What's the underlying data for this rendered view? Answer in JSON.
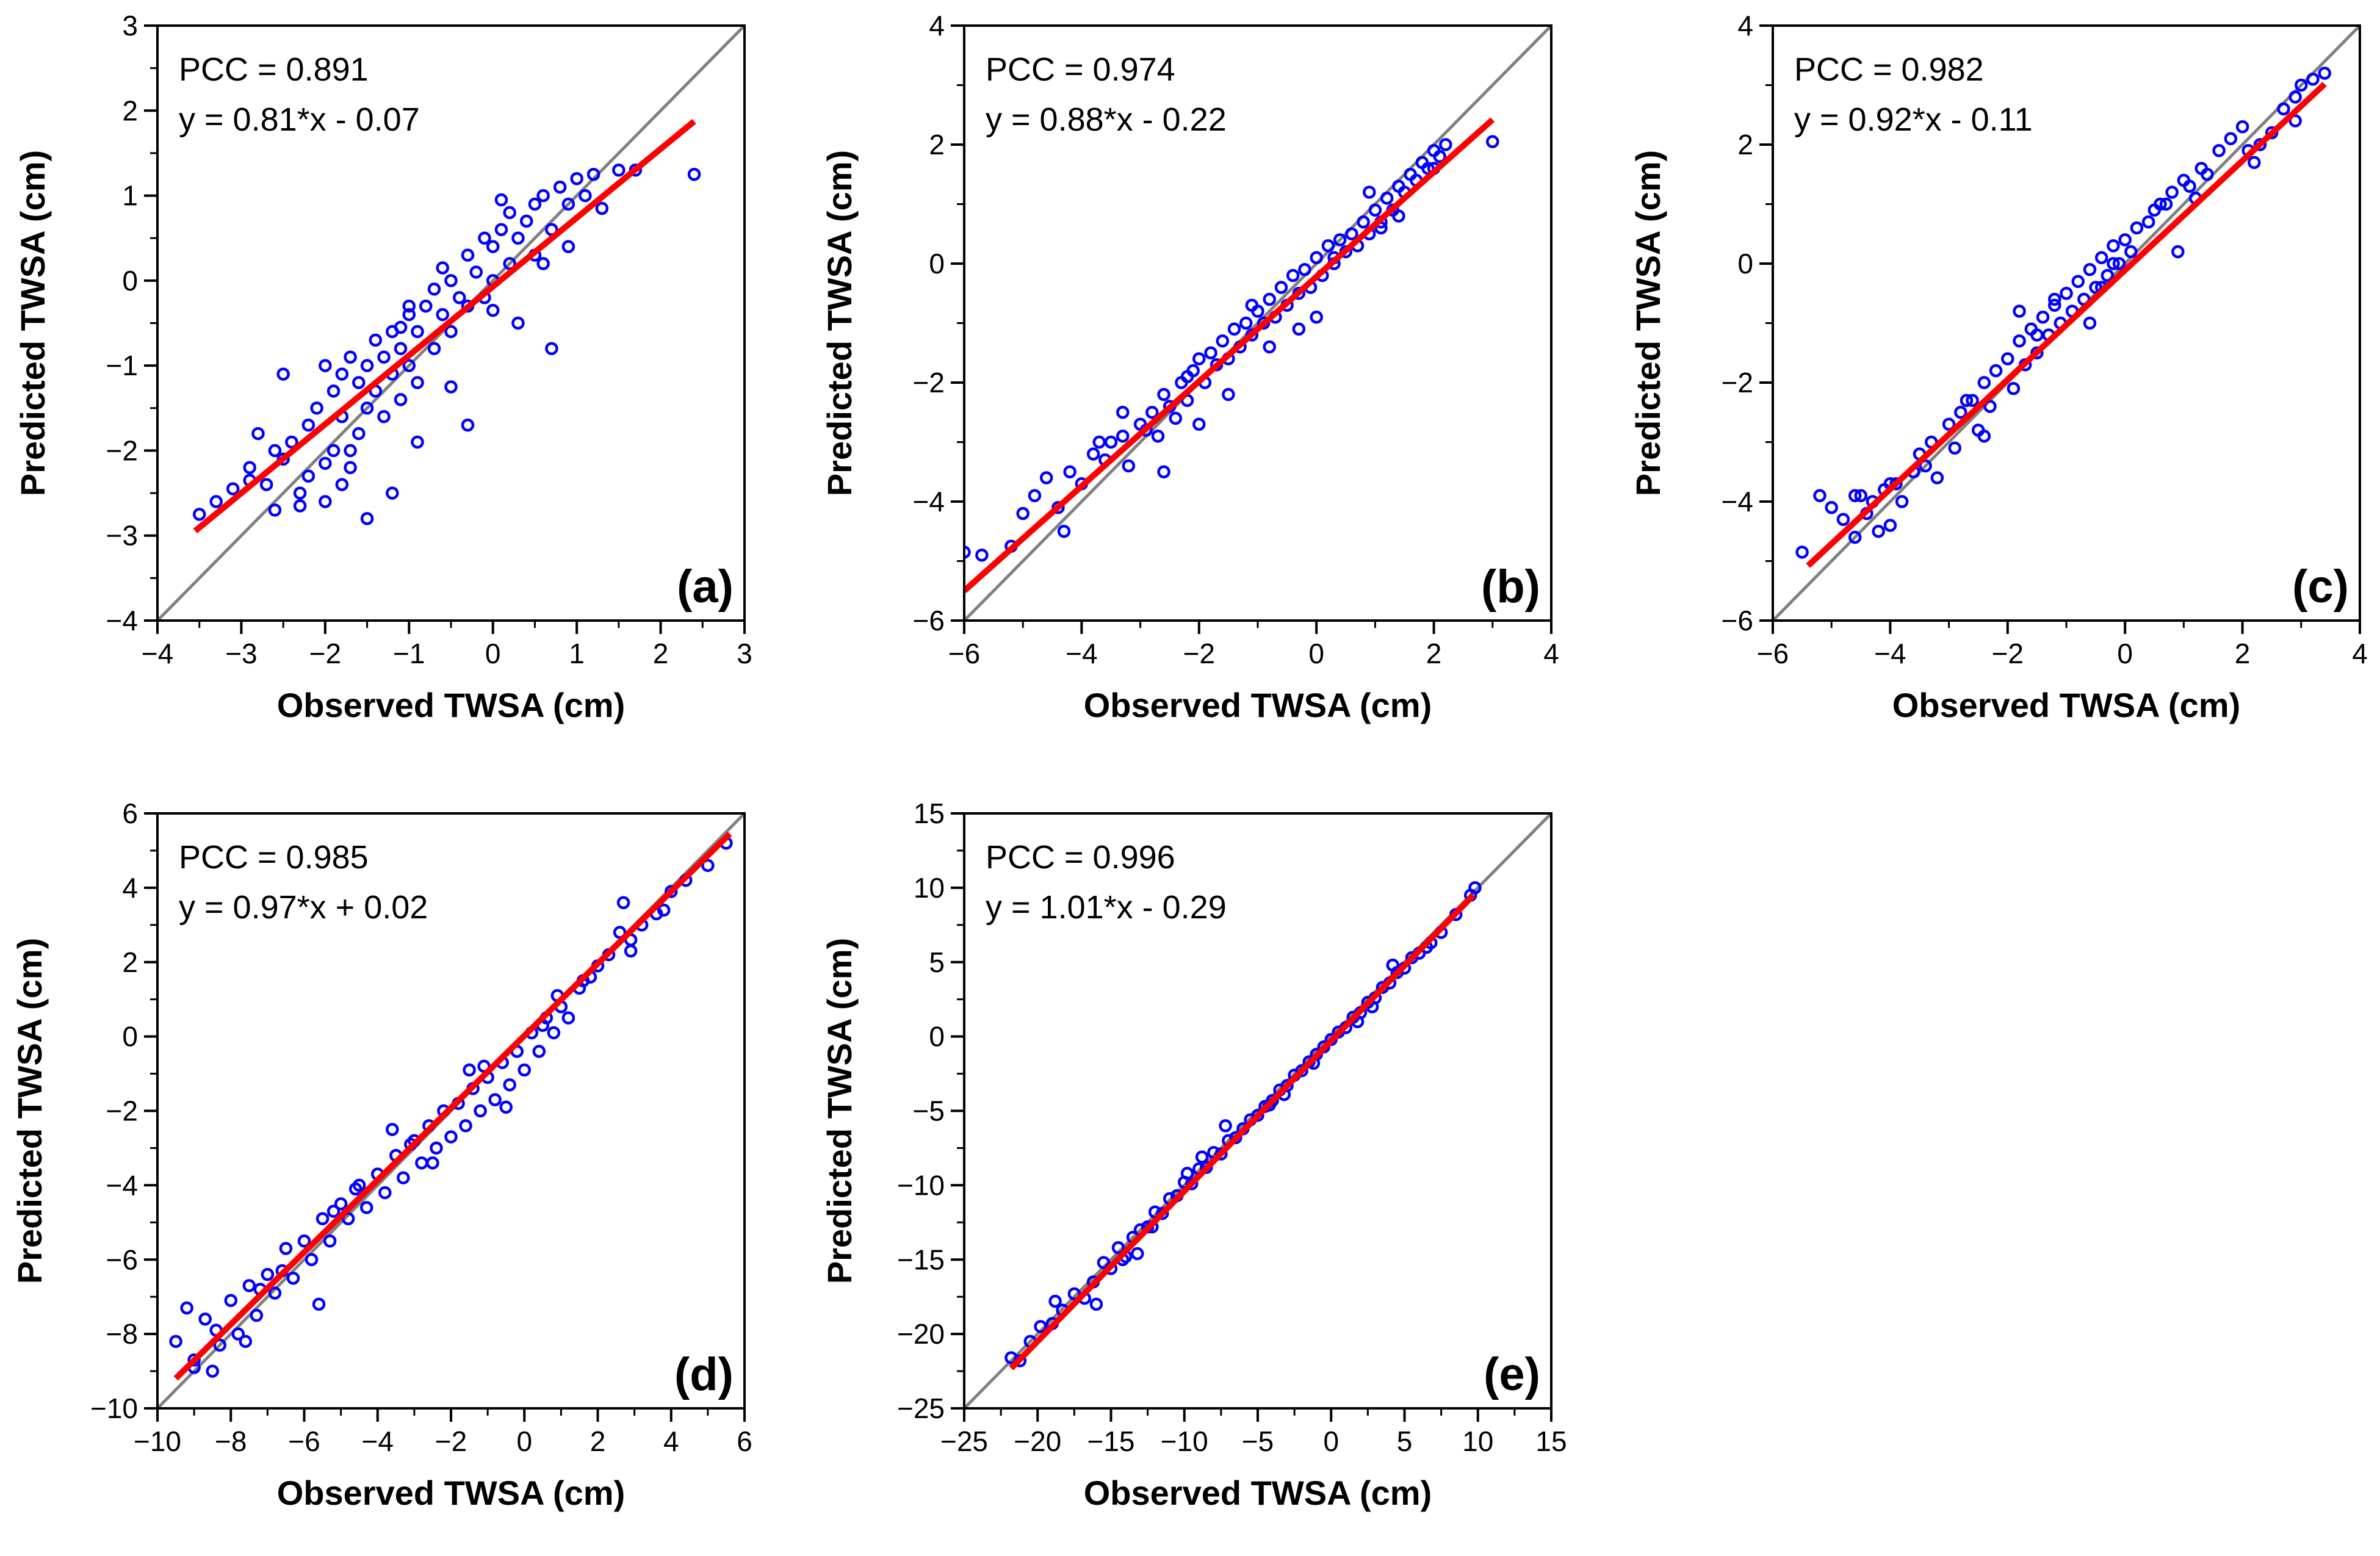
{
  "chart_data": [
    {
      "type": "scatter",
      "panel_label": "(a)",
      "xlabel": "Observed TWSA (cm)",
      "ylabel": "Predicted TWSA (cm)",
      "xlim": [
        -4,
        3
      ],
      "ylim": [
        -4,
        3
      ],
      "xticks": [
        -4,
        -3,
        -2,
        -1,
        0,
        1,
        2,
        3
      ],
      "yticks": [
        -4,
        -3,
        -2,
        -1,
        0,
        1,
        2,
        3
      ],
      "pcc_text": "PCC = 0.891",
      "fit_text": "y = 0.81*x - 0.07",
      "fit": {
        "slope": 0.81,
        "intercept": -0.07,
        "x_range": [
          -3.55,
          2.4
        ]
      },
      "reference_line": "1:1",
      "colors": {
        "points": "#0000ff",
        "fit": "#ff0000",
        "reference": "#808080"
      },
      "x": [
        -3.5,
        -3.3,
        -3.1,
        -2.9,
        -2.8,
        -2.7,
        -2.6,
        -2.5,
        -2.4,
        -2.3,
        -2.2,
        -2.2,
        -2.1,
        -2.0,
        -2.0,
        -1.9,
        -1.9,
        -1.8,
        -1.8,
        -1.7,
        -1.7,
        -1.6,
        -1.6,
        -1.5,
        -1.5,
        -1.4,
        -1.4,
        -1.3,
        -1.3,
        -1.2,
        -1.2,
        -1.1,
        -1.1,
        -1.0,
        -1.0,
        -0.9,
        -0.9,
        -0.8,
        -0.7,
        -0.7,
        -0.6,
        -0.5,
        -0.5,
        -0.4,
        -0.3,
        -0.3,
        -0.2,
        -0.1,
        -0.1,
        0.0,
        0.0,
        0.1,
        0.2,
        0.2,
        0.3,
        0.4,
        0.5,
        0.5,
        0.6,
        0.7,
        0.8,
        0.9,
        1.0,
        1.1,
        1.2,
        1.3,
        1.5,
        1.7,
        2.4,
        -2.5,
        -1.5,
        -1.0,
        -0.3,
        0.1,
        0.7,
        -2.6,
        -2.0,
        -1.8,
        -1.2,
        -0.9,
        -0.5,
        0.3,
        0.9,
        -2.9,
        -2.3,
        -1.7,
        -1.1,
        -0.6,
        0.0,
        0.6
      ],
      "y": [
        -2.75,
        -2.6,
        -2.45,
        -2.2,
        -1.8,
        -2.4,
        -2.0,
        -2.1,
        -1.9,
        -2.5,
        -1.7,
        -2.3,
        -1.5,
        -1.0,
        -2.6,
        -1.3,
        -2.0,
        -1.1,
        -1.6,
        -0.9,
        -2.2,
        -1.2,
        -1.8,
        -1.0,
        -1.5,
        -0.7,
        -1.3,
        -0.9,
        -1.6,
        -0.6,
        -1.1,
        -0.8,
        -1.4,
        -0.4,
        -1.0,
        -0.6,
        -1.2,
        -0.3,
        -0.1,
        -0.8,
        -0.4,
        0.0,
        -0.6,
        -0.2,
        0.3,
        -0.3,
        0.1,
        0.5,
        -0.2,
        0.4,
        0.0,
        0.6,
        0.2,
        0.8,
        0.5,
        0.7,
        0.9,
        0.3,
        1.0,
        0.6,
        1.1,
        0.9,
        1.2,
        1.0,
        1.25,
        0.85,
        1.3,
        1.3,
        1.25,
        -1.1,
        -2.8,
        -0.3,
        -1.7,
        0.95,
        -0.8,
        -2.7,
        -2.15,
        -2.4,
        -2.5,
        -1.9,
        -1.25,
        -0.5,
        0.4,
        -2.35,
        -2.65,
        -2.0,
        -0.55,
        0.15,
        -0.35,
        0.2
      ]
    },
    {
      "type": "scatter",
      "panel_label": "(b)",
      "xlabel": "Observed TWSA (cm)",
      "ylabel": "Predicted TWSA (cm)",
      "xlim": [
        -6,
        4
      ],
      "ylim": [
        -6,
        4
      ],
      "xticks": [
        -6,
        -4,
        -2,
        0,
        2,
        4
      ],
      "yticks": [
        -6,
        -4,
        -2,
        0,
        2,
        4
      ],
      "pcc_text": "PCC = 0.974",
      "fit_text": "y = 0.88*x - 0.22",
      "fit": {
        "slope": 0.88,
        "intercept": -0.22,
        "x_range": [
          -6.0,
          3.0
        ]
      },
      "reference_line": "1:1",
      "colors": {
        "points": "#0000ff",
        "fit": "#ff0000",
        "reference": "#808080"
      },
      "x": [
        -6.0,
        -5.7,
        -5.2,
        -5.0,
        -4.8,
        -4.6,
        -4.4,
        -4.2,
        -4.0,
        -3.8,
        -3.6,
        -3.5,
        -3.3,
        -3.2,
        -3.0,
        -2.9,
        -2.8,
        -2.7,
        -2.6,
        -2.5,
        -2.4,
        -2.3,
        -2.2,
        -2.1,
        -2.0,
        -1.9,
        -1.8,
        -1.7,
        -1.6,
        -1.5,
        -1.4,
        -1.3,
        -1.2,
        -1.1,
        -1.0,
        -0.9,
        -0.8,
        -0.7,
        -0.6,
        -0.5,
        -0.4,
        -0.3,
        -0.2,
        -0.1,
        0.0,
        0.1,
        0.2,
        0.3,
        0.4,
        0.5,
        0.6,
        0.7,
        0.8,
        0.9,
        1.0,
        1.1,
        1.2,
        1.3,
        1.4,
        1.5,
        1.6,
        1.7,
        1.8,
        1.9,
        2.0,
        2.1,
        2.2,
        3.0,
        -4.3,
        -3.7,
        -2.6,
        -2.0,
        -1.5,
        -0.8,
        -0.3,
        0.3,
        0.9,
        1.4,
        2.0,
        -3.3,
        -2.2,
        -1.1,
        0.0,
        1.1
      ],
      "y": [
        -4.85,
        -4.9,
        -4.75,
        -4.2,
        -3.9,
        -3.6,
        -4.1,
        -3.5,
        -3.7,
        -3.2,
        -3.3,
        -3.0,
        -2.9,
        -3.4,
        -2.7,
        -2.8,
        -2.5,
        -2.9,
        -2.2,
        -2.4,
        -2.6,
        -2.0,
        -2.3,
        -1.8,
        -1.6,
        -2.0,
        -1.5,
        -1.7,
        -1.3,
        -1.6,
        -1.1,
        -1.4,
        -1.0,
        -1.2,
        -0.8,
        -1.0,
        -0.6,
        -0.9,
        -0.4,
        -0.7,
        -0.2,
        -0.5,
        -0.1,
        -0.4,
        0.1,
        -0.2,
        0.3,
        0.0,
        0.4,
        0.2,
        0.5,
        0.3,
        0.7,
        0.5,
        0.9,
        0.7,
        1.1,
        0.9,
        1.3,
        1.2,
        1.5,
        1.4,
        1.7,
        1.6,
        1.9,
        1.8,
        2.0,
        2.05,
        -4.5,
        -3.0,
        -3.5,
        -2.7,
        -2.2,
        -1.4,
        -1.1,
        0.1,
        1.2,
        0.8,
        1.6,
        -2.5,
        -1.9,
        -0.7,
        -0.9,
        0.6
      ]
    },
    {
      "type": "scatter",
      "panel_label": "(c)",
      "xlabel": "Observed TWSA (cm)",
      "ylabel": "Predicted TWSA (cm)",
      "xlim": [
        -6,
        4
      ],
      "ylim": [
        -6,
        4
      ],
      "xticks": [
        -6,
        -4,
        -2,
        0,
        2,
        4
      ],
      "yticks": [
        -6,
        -4,
        -2,
        0,
        2,
        4
      ],
      "pcc_text": "PCC = 0.982",
      "fit_text": "y = 0.92*x - 0.11",
      "fit": {
        "slope": 0.92,
        "intercept": -0.11,
        "x_range": [
          -5.4,
          3.4
        ]
      },
      "reference_line": "1:1",
      "colors": {
        "points": "#0000ff",
        "fit": "#ff0000",
        "reference": "#808080"
      },
      "x": [
        -5.5,
        -5.2,
        -5.0,
        -4.8,
        -4.6,
        -4.5,
        -4.4,
        -4.3,
        -4.2,
        -4.1,
        -4.0,
        -3.9,
        -3.8,
        -3.6,
        -3.5,
        -3.3,
        -3.2,
        -3.0,
        -2.9,
        -2.8,
        -2.6,
        -2.5,
        -2.4,
        -2.3,
        -2.2,
        -2.0,
        -1.9,
        -1.8,
        -1.7,
        -1.6,
        -1.5,
        -1.4,
        -1.3,
        -1.2,
        -1.1,
        -1.0,
        -0.9,
        -0.8,
        -0.7,
        -0.6,
        -0.5,
        -0.4,
        -0.3,
        -0.2,
        -0.1,
        0.0,
        0.1,
        0.2,
        0.4,
        0.5,
        0.7,
        0.8,
        1.0,
        1.1,
        1.3,
        1.4,
        1.6,
        1.8,
        2.0,
        2.1,
        2.3,
        2.5,
        2.7,
        2.9,
        3.0,
        3.2,
        3.4,
        -4.6,
        -3.4,
        -2.7,
        -1.8,
        -1.2,
        -0.6,
        -0.2,
        0.6,
        1.2,
        2.2,
        2.9,
        -4.0,
        -2.4,
        -1.5,
        -0.4,
        0.9
      ],
      "y": [
        -4.85,
        -3.9,
        -4.1,
        -4.3,
        -4.6,
        -3.9,
        -4.2,
        -4.0,
        -4.5,
        -3.8,
        -4.4,
        -3.7,
        -4.0,
        -3.5,
        -3.2,
        -3.0,
        -3.6,
        -2.7,
        -3.1,
        -2.5,
        -2.3,
        -2.8,
        -2.0,
        -2.4,
        -1.8,
        -1.6,
        -2.1,
        -1.3,
        -1.7,
        -1.1,
        -1.5,
        -0.9,
        -1.2,
        -0.7,
        -1.0,
        -0.5,
        -0.8,
        -0.3,
        -0.6,
        -0.1,
        -0.4,
        0.1,
        -0.2,
        0.3,
        0.0,
        0.4,
        0.2,
        0.6,
        0.7,
        0.9,
        1.0,
        1.2,
        1.4,
        1.3,
        1.6,
        1.5,
        1.9,
        2.1,
        2.3,
        1.9,
        2.0,
        2.2,
        2.6,
        2.8,
        3.0,
        3.1,
        3.2,
        -3.9,
        -3.4,
        -2.3,
        -0.8,
        -0.6,
        -1.0,
        0.0,
        1.0,
        1.1,
        1.7,
        2.4,
        -3.7,
        -2.9,
        -1.2,
        -0.4,
        0.2
      ]
    },
    {
      "type": "scatter",
      "panel_label": "(d)",
      "xlabel": "Observed TWSA (cm)",
      "ylabel": "Predicted TWSA (cm)",
      "xlim": [
        -10,
        6
      ],
      "ylim": [
        -10,
        6
      ],
      "xticks": [
        -10,
        -8,
        -6,
        -4,
        -2,
        0,
        2,
        4,
        6
      ],
      "yticks": [
        -10,
        -8,
        -6,
        -4,
        -2,
        0,
        2,
        4,
        6
      ],
      "pcc_text": "PCC = 0.985",
      "fit_text": "y = 0.97*x + 0.02",
      "fit": {
        "slope": 0.97,
        "intercept": 0.02,
        "x_range": [
          -9.5,
          5.6
        ]
      },
      "reference_line": "1:1",
      "colors": {
        "points": "#0000ff",
        "fit": "#ff0000",
        "reference": "#808080"
      },
      "x": [
        -9.5,
        -9.2,
        -9.0,
        -8.7,
        -8.5,
        -8.3,
        -8.0,
        -7.8,
        -7.5,
        -7.3,
        -7.0,
        -6.8,
        -6.5,
        -6.3,
        -6.0,
        -5.8,
        -5.5,
        -5.3,
        -5.0,
        -4.8,
        -4.5,
        -4.3,
        -4.0,
        -3.8,
        -3.5,
        -3.3,
        -3.0,
        -2.8,
        -2.6,
        -2.4,
        -2.2,
        -2.0,
        -1.8,
        -1.6,
        -1.4,
        -1.2,
        -1.0,
        -0.8,
        -0.6,
        -0.4,
        -0.2,
        0.0,
        0.2,
        0.4,
        0.6,
        0.8,
        1.0,
        1.2,
        1.5,
        1.8,
        2.0,
        2.3,
        2.6,
        2.9,
        3.2,
        3.6,
        4.0,
        4.4,
        5.0,
        5.5,
        -9.0,
        -8.4,
        -7.6,
        -6.6,
        -5.6,
        -4.6,
        -3.6,
        -2.5,
        -1.5,
        -0.5,
        0.5,
        1.6,
        2.7,
        3.8,
        -7.2,
        -5.2,
        -3.1,
        -1.1,
        0.9,
        2.9
      ],
      "y": [
        -8.2,
        -7.3,
        -8.7,
        -7.6,
        -9.0,
        -8.3,
        -7.1,
        -8.0,
        -6.7,
        -7.5,
        -6.4,
        -6.9,
        -5.7,
        -6.5,
        -5.5,
        -6.0,
        -4.9,
        -5.5,
        -4.5,
        -4.9,
        -4.0,
        -4.6,
        -3.7,
        -4.2,
        -3.2,
        -3.8,
        -2.8,
        -3.4,
        -2.4,
        -3.0,
        -2.0,
        -2.7,
        -1.8,
        -2.4,
        -1.4,
        -2.0,
        -1.1,
        -1.7,
        -0.7,
        -1.3,
        -0.4,
        -0.9,
        0.1,
        -0.4,
        0.5,
        0.1,
        0.8,
        0.5,
        1.3,
        1.6,
        1.9,
        2.2,
        2.8,
        2.6,
        3.0,
        3.3,
        3.9,
        4.2,
        4.6,
        5.2,
        -8.9,
        -7.9,
        -8.2,
        -6.3,
        -7.2,
        -4.1,
        -2.5,
        -3.4,
        -0.9,
        -1.9,
        0.3,
        1.5,
        3.6,
        3.4,
        -6.8,
        -4.7,
        -2.9,
        -0.8,
        1.1,
        2.3
      ]
    },
    {
      "type": "scatter",
      "panel_label": "(e)",
      "xlabel": "Observed TWSA (cm)",
      "ylabel": "Predicted TWSA (cm)",
      "xlim": [
        -25,
        15
      ],
      "ylim": [
        -25,
        15
      ],
      "xticks": [
        -25,
        -20,
        -15,
        -10,
        -5,
        0,
        5,
        10,
        15
      ],
      "yticks": [
        -25,
        -20,
        -15,
        -10,
        -5,
        0,
        5,
        10,
        15
      ],
      "pcc_text": "PCC = 0.996",
      "fit_text": "y = 1.01*x - 0.29",
      "fit": {
        "slope": 1.01,
        "intercept": -0.29,
        "x_range": [
          -21.8,
          9.7
        ]
      },
      "reference_line": "1:1",
      "colors": {
        "points": "#0000ff",
        "fit": "#ff0000",
        "reference": "#808080"
      },
      "x": [
        -21.8,
        -21.2,
        -20.5,
        -19.8,
        -19.0,
        -18.3,
        -17.5,
        -16.8,
        -16.2,
        -15.5,
        -15.0,
        -14.5,
        -14.0,
        -13.5,
        -13.0,
        -12.5,
        -12.0,
        -11.5,
        -11.0,
        -10.5,
        -10.0,
        -9.5,
        -9.0,
        -8.5,
        -8.0,
        -7.5,
        -7.0,
        -6.5,
        -6.0,
        -5.5,
        -5.0,
        -4.5,
        -4.0,
        -3.5,
        -3.0,
        -2.5,
        -2.0,
        -1.5,
        -1.0,
        -0.5,
        0.0,
        0.5,
        1.0,
        1.5,
        2.0,
        2.5,
        3.0,
        3.5,
        4.0,
        4.5,
        5.0,
        5.5,
        6.0,
        6.8,
        7.5,
        8.5,
        9.5,
        9.8,
        -16.0,
        -14.2,
        -12.2,
        -9.8,
        -7.2,
        -4.2,
        -1.2,
        1.8,
        4.2,
        6.5,
        -18.8,
        -13.2,
        -8.8,
        -3.2,
        2.8
      ],
      "y": [
        -21.6,
        -21.8,
        -20.5,
        -19.5,
        -19.3,
        -18.4,
        -17.3,
        -17.6,
        -16.5,
        -15.2,
        -15.6,
        -14.2,
        -14.8,
        -13.5,
        -13.0,
        -12.8,
        -11.8,
        -11.9,
        -10.9,
        -10.7,
        -9.8,
        -9.9,
        -8.9,
        -8.8,
        -7.8,
        -7.9,
        -7.0,
        -6.8,
        -6.2,
        -5.6,
        -5.3,
        -4.7,
        -4.3,
        -3.6,
        -3.3,
        -2.6,
        -2.3,
        -1.7,
        -1.2,
        -0.7,
        -0.2,
        0.3,
        0.6,
        1.3,
        1.6,
        2.3,
        2.6,
        3.3,
        3.6,
        4.3,
        4.6,
        5.3,
        5.6,
        6.3,
        7.0,
        8.2,
        9.5,
        10.0,
        -18.0,
        -15.0,
        -12.8,
        -9.2,
        -6.0,
        -4.6,
        -1.8,
        1.0,
        4.8,
        6.0,
        -17.8,
        -14.6,
        -8.1,
        -3.9,
        2.0
      ]
    }
  ]
}
